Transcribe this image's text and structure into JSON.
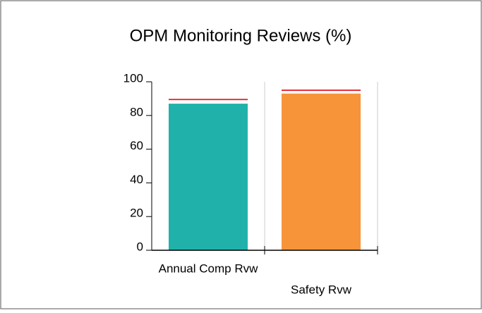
{
  "chart_data": {
    "type": "bar",
    "title": "OPM Monitoring Reviews (%)",
    "categories": [
      "Annual Comp Rvw",
      "Safety Rvw"
    ],
    "values": [
      87,
      93
    ],
    "colors": [
      "#20b2aa",
      "#f7943a"
    ],
    "target_values": [
      89.5,
      95
    ],
    "target_color": "#e8303a",
    "ylim": [
      0,
      100
    ],
    "yticks": [
      0,
      20,
      40,
      60,
      80,
      100
    ],
    "grid": true
  }
}
